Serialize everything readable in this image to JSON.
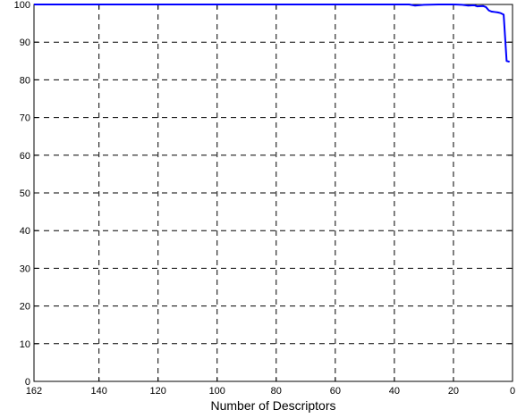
{
  "chart_data": {
    "type": "line",
    "title": "",
    "xlabel": "Number of Descriptors",
    "ylabel": "",
    "xlim": [
      162,
      0
    ],
    "ylim": [
      0,
      100
    ],
    "x_reversed": true,
    "x_ticks": [
      162,
      140,
      120,
      100,
      80,
      60,
      40,
      20,
      0
    ],
    "x_tick_labels": [
      "162",
      "140",
      "120",
      "100",
      "80",
      "60",
      "40",
      "20",
      "0"
    ],
    "y_ticks": [
      0,
      10,
      20,
      30,
      40,
      50,
      60,
      70,
      80,
      90,
      100
    ],
    "y_tick_labels": [
      "0",
      "10",
      "20",
      "30",
      "40",
      "50",
      "60",
      "70",
      "80",
      "90",
      "100"
    ],
    "grid": true,
    "grid_style": "dashed",
    "series": [
      {
        "color": "#0000ff",
        "x": [
          162,
          140,
          120,
          100,
          80,
          60,
          40,
          35,
          33,
          30,
          25,
          20,
          17,
          15,
          13,
          12,
          10,
          9,
          8,
          7,
          6,
          5,
          4,
          3,
          2,
          1
        ],
        "y": [
          100,
          100,
          100,
          100,
          100,
          100,
          100,
          100,
          99.7,
          99.9,
          100,
          100,
          99.9,
          99.7,
          99.8,
          99.5,
          99.6,
          99.3,
          98.4,
          98.1,
          98.0,
          97.9,
          97.7,
          97.3,
          85.0,
          84.8
        ]
      }
    ]
  }
}
